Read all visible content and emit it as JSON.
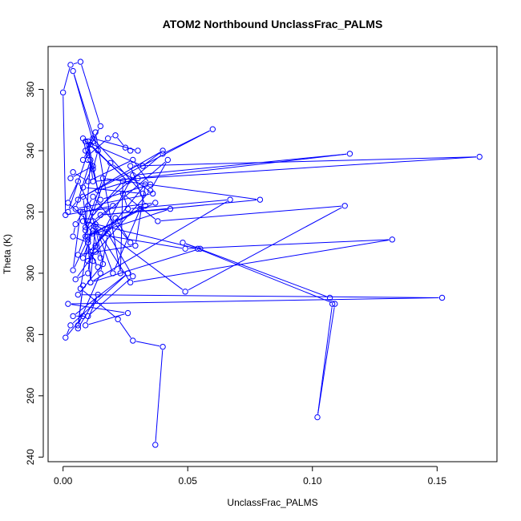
{
  "chart_data": {
    "type": "line",
    "title": "ATOM2 Northbound UnclassFrac_PALMS",
    "xlabel": "UnclassFrac_PALMS",
    "ylabel": "Theta (K)",
    "xlim": [
      -0.006,
      0.174
    ],
    "ylim": [
      238.5,
      374
    ],
    "grid": false,
    "x_ticks": [
      {
        "value": 0.0,
        "label": "0.00"
      },
      {
        "value": 0.05,
        "label": "0.05"
      },
      {
        "value": 0.1,
        "label": "0.10"
      },
      {
        "value": 0.15,
        "label": "0.15"
      }
    ],
    "y_ticks": [
      {
        "value": 240,
        "label": "240"
      },
      {
        "value": 260,
        "label": "260"
      },
      {
        "value": 280,
        "label": "280"
      },
      {
        "value": 300,
        "label": "300"
      },
      {
        "value": 320,
        "label": "320"
      },
      {
        "value": 340,
        "label": "340"
      },
      {
        "value": 360,
        "label": "360"
      }
    ],
    "series": [
      {
        "color": "#0000ff",
        "marker": "open-circle",
        "x": [
          0.037,
          0.04,
          0.028,
          0.022,
          0.007,
          0.01,
          0.012,
          0.02,
          0.001,
          0.0,
          0.003,
          0.007,
          0.015,
          0.008,
          0.018,
          0.021,
          0.025,
          0.027,
          0.03,
          0.012,
          0.032,
          0.008,
          0.012,
          0.003,
          0.004,
          0.01,
          0.028,
          0.035,
          0.015,
          0.009,
          0.032,
          0.04,
          0.006,
          0.002,
          0.011,
          0.026,
          0.008,
          0.01,
          0.012,
          0.014,
          0.004,
          0.012,
          0.009,
          0.013,
          0.023,
          0.024,
          0.01,
          0.002,
          0.006,
          0.012,
          0.04,
          0.06,
          0.008,
          0.01,
          0.033,
          0.027,
          0.167,
          0.012,
          0.01,
          0.014,
          0.03,
          0.115,
          0.028,
          0.01,
          0.035,
          0.042,
          0.009,
          0.011,
          0.005,
          0.036,
          0.019,
          0.006,
          0.029,
          0.033,
          0.013,
          0.021,
          0.027,
          0.012,
          0.01,
          0.02,
          0.031,
          0.009,
          0.043,
          0.015,
          0.079,
          0.016,
          0.009,
          0.008,
          0.005,
          0.004,
          0.01,
          0.012,
          0.014,
          0.011,
          0.01,
          0.005,
          0.013,
          0.015,
          0.012,
          0.008,
          0.022,
          0.037,
          0.007,
          0.004,
          0.01,
          0.011,
          0.067,
          0.026,
          0.024,
          0.038,
          0.113,
          0.049,
          0.013,
          0.011,
          0.055,
          0.048,
          0.107,
          0.108,
          0.102,
          0.109,
          0.054,
          0.008,
          0.012,
          0.049,
          0.132,
          0.027,
          0.013,
          0.016,
          0.006,
          0.152,
          0.002,
          0.026,
          0.009,
          0.014,
          0.006,
          0.008,
          0.006,
          0.015,
          0.018,
          0.028,
          0.01,
          0.004,
          0.026,
          0.003,
          0.001,
          0.008
        ],
        "y": [
          244,
          276,
          278,
          285,
          295,
          310,
          317,
          322,
          319,
          359,
          368,
          369,
          348,
          337,
          344,
          345,
          341,
          340,
          340,
          344,
          326,
          328,
          335,
          331,
          333,
          330,
          337,
          329,
          324,
          343,
          335,
          340,
          324,
          320,
          342,
          330,
          344,
          337,
          334,
          340,
          366,
          343,
          340,
          346,
          300,
          330,
          317,
          323,
          330,
          320,
          339,
          347,
          325,
          312,
          322,
          335,
          338,
          330,
          343,
          327,
          331,
          339,
          332,
          304,
          327,
          337,
          314,
          337,
          321,
          326,
          336,
          306,
          309,
          329,
          309,
          318,
          310,
          325,
          322,
          300,
          321,
          312,
          321,
          319,
          324,
          331,
          315,
          320,
          316,
          312,
          310,
          304,
          302,
          307,
          300,
          298,
          307,
          305,
          314,
          305,
          317,
          323,
          320,
          301,
          311,
          297,
          324,
          321,
          326,
          317,
          322,
          294,
          316,
          297,
          308,
          310,
          292,
          290,
          253,
          290,
          308,
          317,
          313,
          308,
          311,
          297,
          315,
          303,
          293,
          292,
          290,
          287,
          283,
          293,
          282,
          296,
          283,
          300,
          313,
          299,
          286,
          286,
          300,
          283,
          279,
          286
        ]
      }
    ]
  }
}
